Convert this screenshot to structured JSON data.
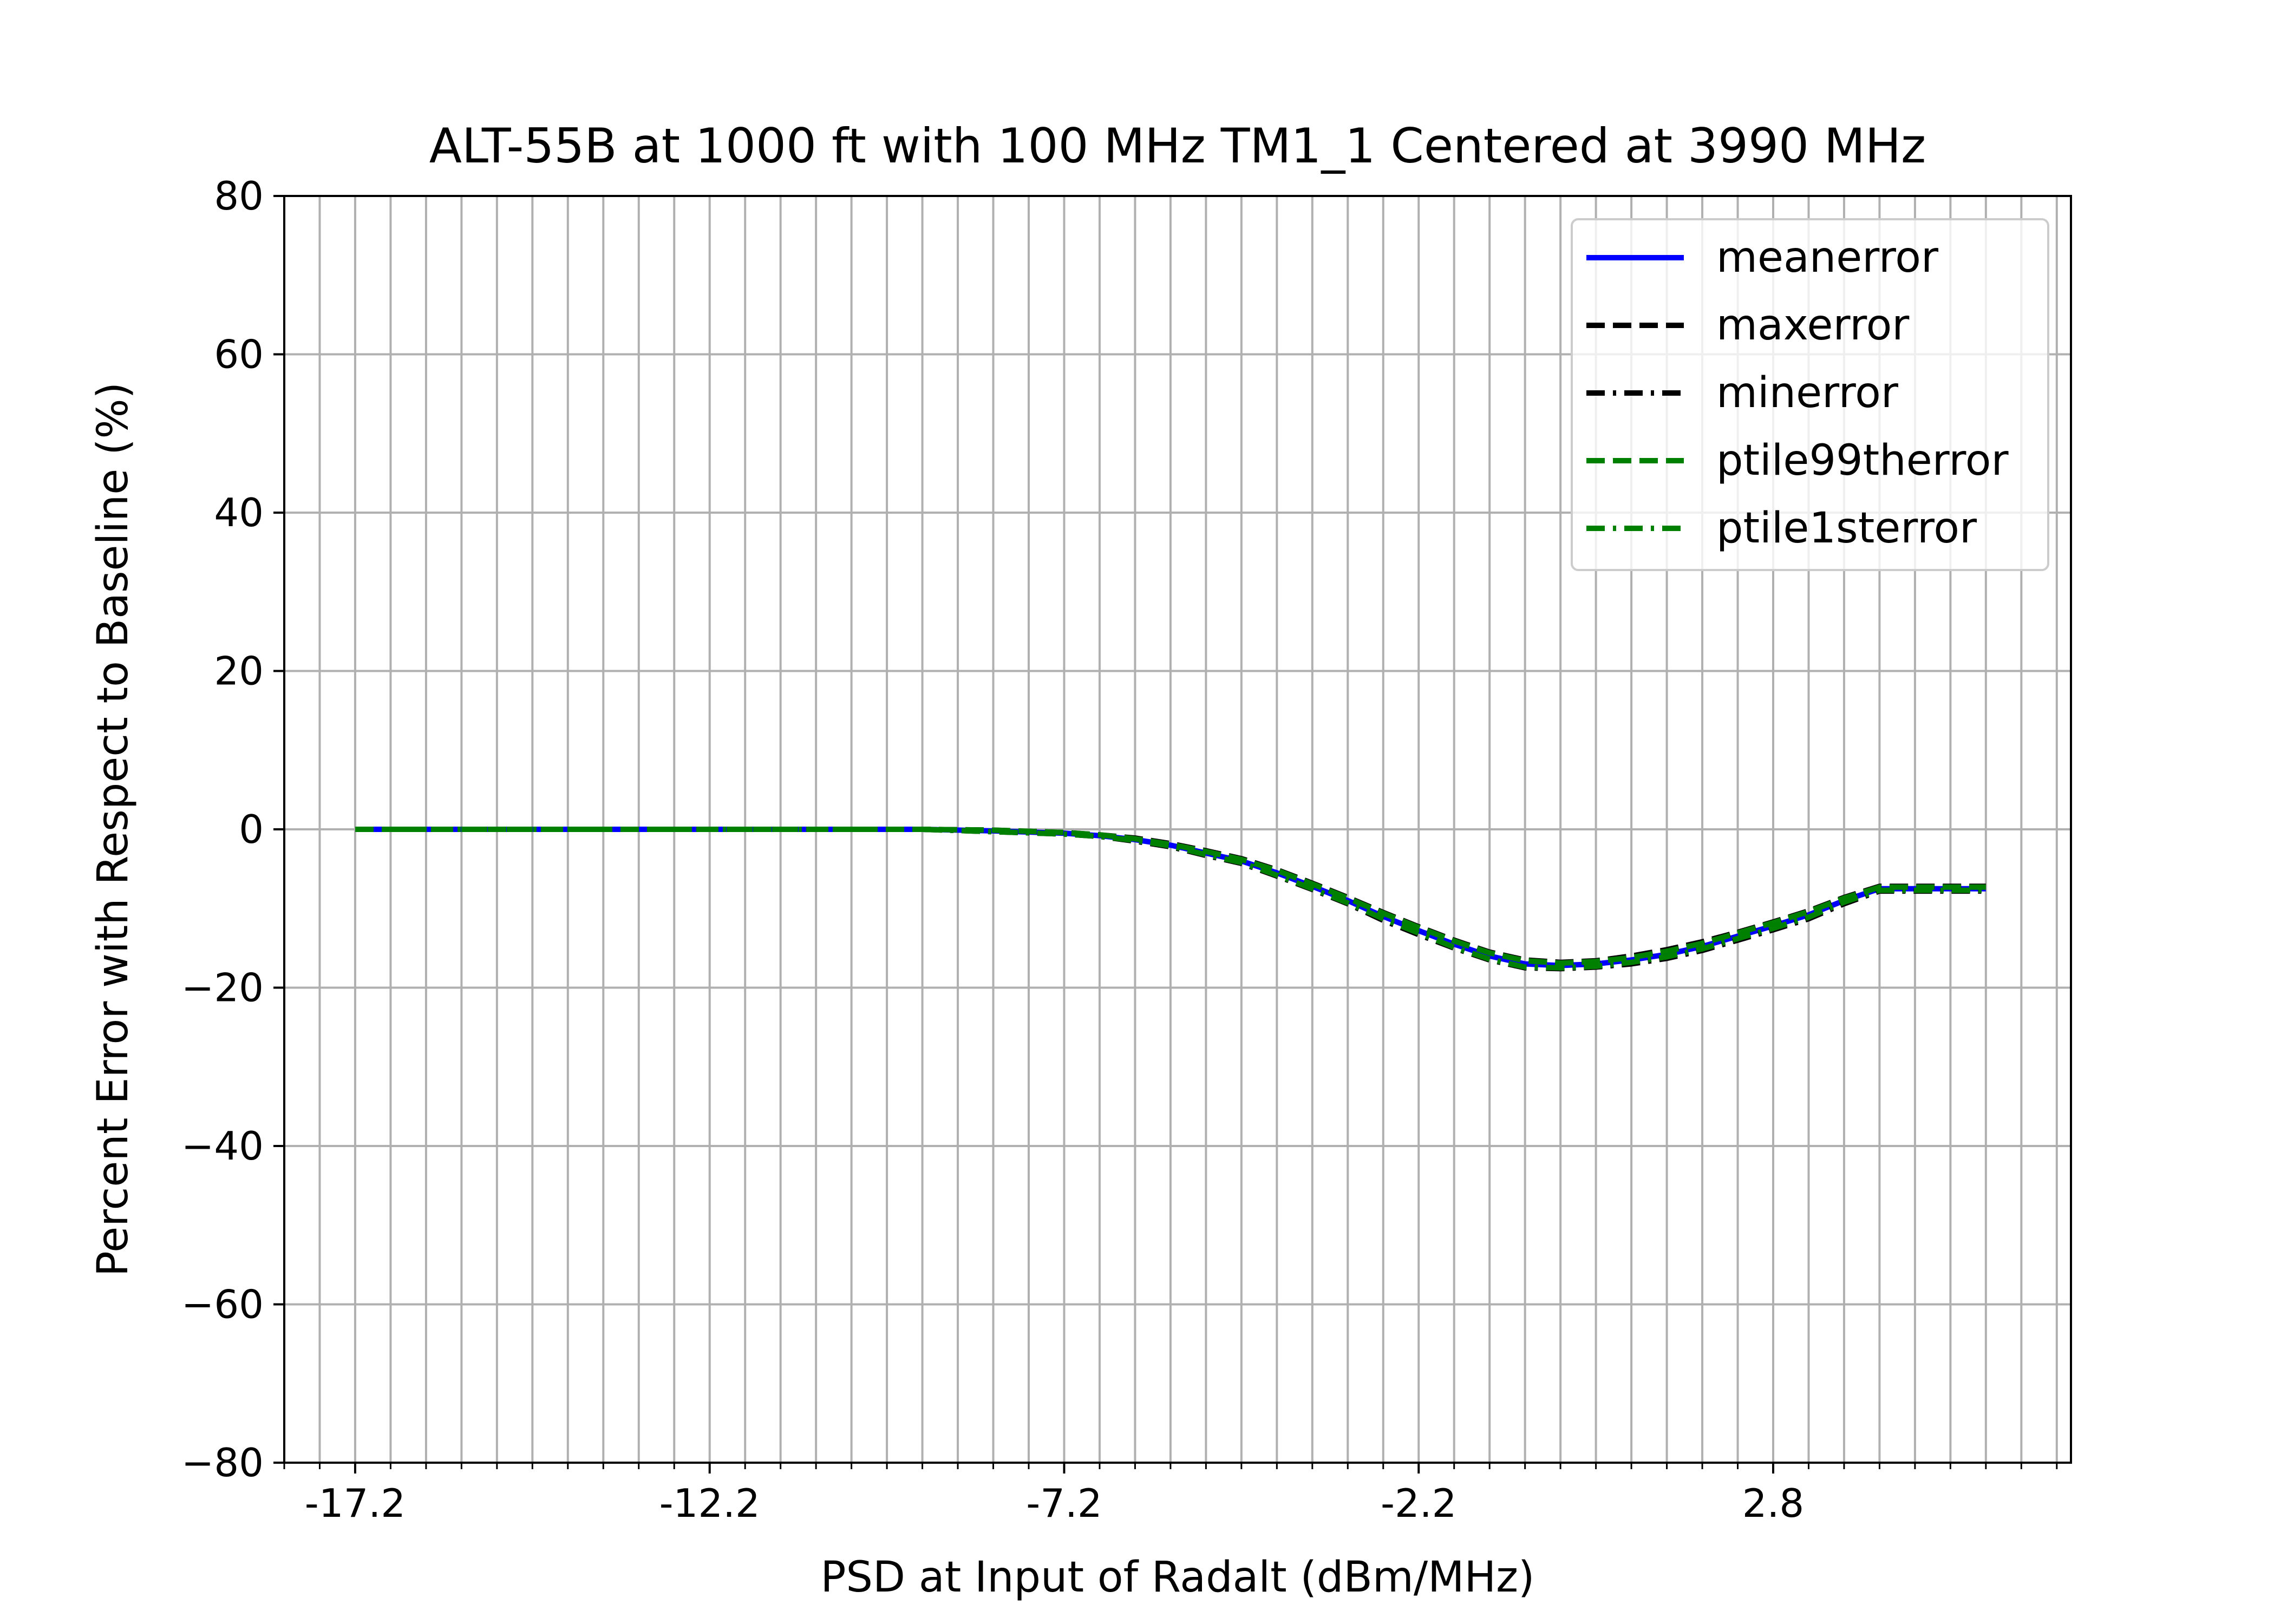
{
  "chart_data": {
    "type": "line",
    "title": "ALT-55B at 1000 ft with 100 MHz TM1_1 Centered at 3990 MHz",
    "xlabel": "PSD at Input of Radalt (dBm/MHz)",
    "ylabel": "Percent Error with Respect to Baseline (%)",
    "xlim": [
      -18.2,
      7.0
    ],
    "ylim": [
      -80,
      80
    ],
    "x_ticks": [
      -17.2,
      -12.2,
      -7.2,
      -2.2,
      2.8
    ],
    "x_tick_labels": [
      "-17.2",
      "-12.2",
      "-7.2",
      "-2.2",
      "2.8"
    ],
    "x_minor_step": 0.5,
    "y_ticks": [
      80,
      60,
      40,
      20,
      0,
      -20,
      -40,
      -60,
      -80
    ],
    "y_tick_labels": [
      "80",
      "60",
      "40",
      "20",
      "0",
      "−20",
      "−40",
      "−60",
      "−80"
    ],
    "grid": true,
    "legend_position": "top-right",
    "x": [
      -17.2,
      -16.2,
      -15.2,
      -14.2,
      -13.2,
      -12.2,
      -11.2,
      -10.2,
      -9.2,
      -8.2,
      -7.2,
      -6.7,
      -6.2,
      -5.7,
      -5.2,
      -4.7,
      -4.2,
      -3.7,
      -3.2,
      -2.7,
      -2.2,
      -1.7,
      -1.2,
      -0.7,
      -0.2,
      0.3,
      0.8,
      1.3,
      1.8,
      2.3,
      2.8,
      3.3,
      3.8,
      4.3,
      4.8,
      5.3,
      5.8
    ],
    "series": [
      {
        "name": "meanerror",
        "color": "#0000ff",
        "dash": "solid",
        "values": [
          0.0,
          0.0,
          0.0,
          0.0,
          0.0,
          0.0,
          0.0,
          0.0,
          0.0,
          -0.2,
          -0.5,
          -0.8,
          -1.3,
          -2.0,
          -3.0,
          -4.0,
          -5.5,
          -7.2,
          -9.0,
          -11.0,
          -12.8,
          -14.5,
          -16.0,
          -17.0,
          -17.2,
          -17.0,
          -16.5,
          -15.8,
          -14.8,
          -13.5,
          -12.2,
          -10.8,
          -9.0,
          -7.5,
          -7.5,
          -7.5,
          -7.5
        ]
      },
      {
        "name": "maxerror",
        "color": "#000000",
        "dash": "dashed",
        "values": [
          0.0,
          0.0,
          0.0,
          0.0,
          0.0,
          0.0,
          0.0,
          0.0,
          0.0,
          -0.1,
          -0.4,
          -0.7,
          -1.1,
          -1.8,
          -2.7,
          -3.7,
          -5.1,
          -6.8,
          -8.6,
          -10.5,
          -12.3,
          -14.0,
          -15.5,
          -16.5,
          -16.8,
          -16.6,
          -16.0,
          -15.2,
          -14.2,
          -13.0,
          -11.7,
          -10.3,
          -8.6,
          -7.2,
          -7.2,
          -7.2,
          -7.2
        ]
      },
      {
        "name": "minerror",
        "color": "#000000",
        "dash": "dashdot",
        "values": [
          0.0,
          0.0,
          0.0,
          0.0,
          0.0,
          0.0,
          0.0,
          0.0,
          0.0,
          -0.3,
          -0.6,
          -0.9,
          -1.5,
          -2.2,
          -3.3,
          -4.3,
          -5.9,
          -7.6,
          -9.4,
          -11.5,
          -13.3,
          -15.0,
          -16.5,
          -17.5,
          -17.6,
          -17.4,
          -17.0,
          -16.3,
          -15.3,
          -14.0,
          -12.7,
          -11.3,
          -9.4,
          -7.8,
          -7.8,
          -7.8,
          -7.8
        ]
      },
      {
        "name": "ptile99therror",
        "color": "#008000",
        "dash": "dashed",
        "values": [
          0.0,
          0.0,
          0.0,
          0.0,
          0.0,
          0.0,
          0.0,
          0.0,
          0.0,
          -0.1,
          -0.4,
          -0.7,
          -1.2,
          -1.9,
          -2.8,
          -3.8,
          -5.2,
          -6.9,
          -8.7,
          -10.6,
          -12.4,
          -14.1,
          -15.6,
          -16.6,
          -16.9,
          -16.7,
          -16.2,
          -15.4,
          -14.4,
          -13.1,
          -11.8,
          -10.4,
          -8.7,
          -7.3,
          -7.3,
          -7.3,
          -7.3
        ]
      },
      {
        "name": "ptile1sterror",
        "color": "#008000",
        "dash": "dashdot",
        "values": [
          0.0,
          0.0,
          0.0,
          0.0,
          0.0,
          0.0,
          0.0,
          0.0,
          0.0,
          -0.3,
          -0.6,
          -0.9,
          -1.4,
          -2.1,
          -3.2,
          -4.2,
          -5.8,
          -7.5,
          -9.3,
          -11.3,
          -13.1,
          -14.9,
          -16.4,
          -17.4,
          -17.5,
          -17.3,
          -16.8,
          -16.1,
          -15.1,
          -13.8,
          -12.5,
          -11.1,
          -9.2,
          -7.7,
          -7.7,
          -7.7,
          -7.7
        ]
      }
    ]
  }
}
